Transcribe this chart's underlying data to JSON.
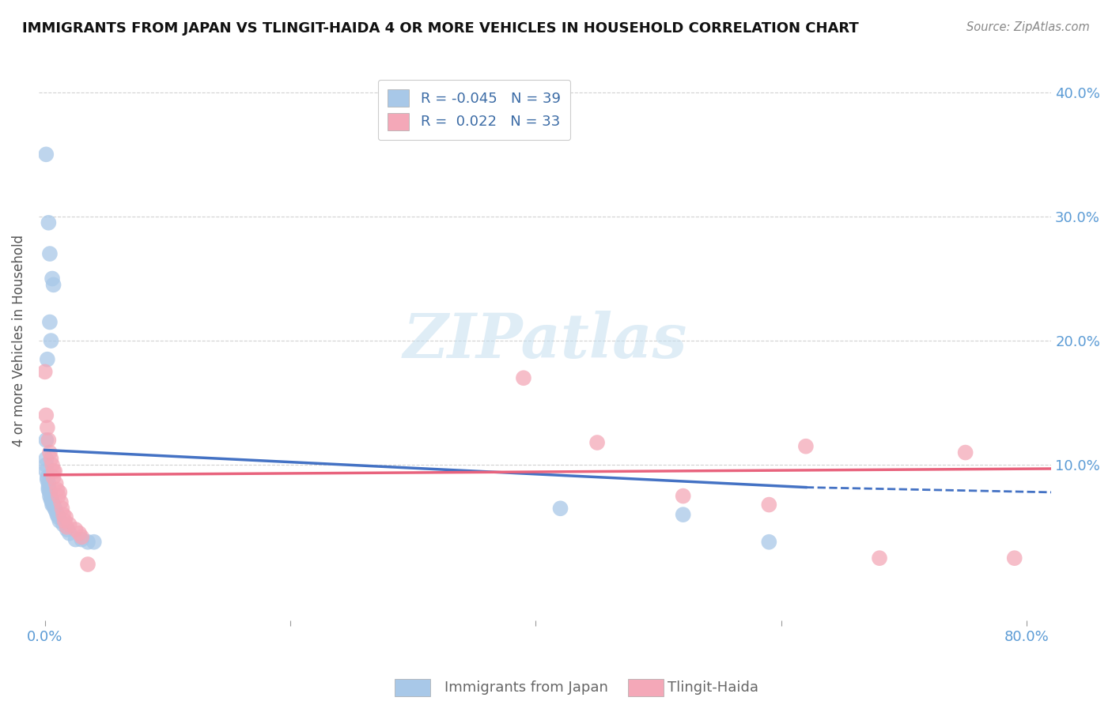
{
  "title": "IMMIGRANTS FROM JAPAN VS TLINGIT-HAIDA 4 OR MORE VEHICLES IN HOUSEHOLD CORRELATION CHART",
  "source_text": "Source: ZipAtlas.com",
  "ylabel": "4 or more Vehicles in Household",
  "xlim": [
    -0.005,
    0.82
  ],
  "ylim": [
    -0.025,
    0.425
  ],
  "yticks_right": [
    0.1,
    0.2,
    0.3,
    0.4
  ],
  "yticklabels_right": [
    "10.0%",
    "20.0%",
    "30.0%",
    "40.0%"
  ],
  "legend_label1": "Immigrants from Japan",
  "legend_label2": "Tlingit-Haida",
  "blue_color": "#A8C8E8",
  "pink_color": "#F4A8B8",
  "blue_line_color": "#4472C4",
  "pink_line_color": "#E8637D",
  "blue_scatter": [
    [
      0.001,
      0.35
    ],
    [
      0.003,
      0.295
    ],
    [
      0.004,
      0.27
    ],
    [
      0.006,
      0.25
    ],
    [
      0.007,
      0.245
    ],
    [
      0.004,
      0.215
    ],
    [
      0.005,
      0.2
    ],
    [
      0.002,
      0.185
    ],
    [
      0.001,
      0.12
    ],
    [
      0.001,
      0.105
    ],
    [
      0.001,
      0.1
    ],
    [
      0.001,
      0.095
    ],
    [
      0.002,
      0.09
    ],
    [
      0.002,
      0.088
    ],
    [
      0.003,
      0.085
    ],
    [
      0.003,
      0.082
    ],
    [
      0.003,
      0.08
    ],
    [
      0.004,
      0.078
    ],
    [
      0.004,
      0.075
    ],
    [
      0.005,
      0.073
    ],
    [
      0.005,
      0.072
    ],
    [
      0.006,
      0.07
    ],
    [
      0.006,
      0.068
    ],
    [
      0.007,
      0.068
    ],
    [
      0.008,
      0.065
    ],
    [
      0.009,
      0.063
    ],
    [
      0.01,
      0.06
    ],
    [
      0.011,
      0.058
    ],
    [
      0.012,
      0.055
    ],
    [
      0.015,
      0.052
    ],
    [
      0.018,
      0.048
    ],
    [
      0.02,
      0.045
    ],
    [
      0.025,
      0.04
    ],
    [
      0.03,
      0.04
    ],
    [
      0.035,
      0.038
    ],
    [
      0.04,
      0.038
    ],
    [
      0.42,
      0.065
    ],
    [
      0.52,
      0.06
    ],
    [
      0.59,
      0.038
    ]
  ],
  "pink_scatter": [
    [
      0.0,
      0.175
    ],
    [
      0.001,
      0.14
    ],
    [
      0.002,
      0.13
    ],
    [
      0.003,
      0.12
    ],
    [
      0.004,
      0.11
    ],
    [
      0.005,
      0.105
    ],
    [
      0.006,
      0.1
    ],
    [
      0.007,
      0.095
    ],
    [
      0.007,
      0.09
    ],
    [
      0.008,
      0.095
    ],
    [
      0.009,
      0.085
    ],
    [
      0.01,
      0.08
    ],
    [
      0.011,
      0.075
    ],
    [
      0.012,
      0.078
    ],
    [
      0.013,
      0.07
    ],
    [
      0.014,
      0.065
    ],
    [
      0.015,
      0.06
    ],
    [
      0.016,
      0.055
    ],
    [
      0.017,
      0.058
    ],
    [
      0.018,
      0.05
    ],
    [
      0.02,
      0.052
    ],
    [
      0.025,
      0.048
    ],
    [
      0.028,
      0.045
    ],
    [
      0.03,
      0.042
    ],
    [
      0.035,
      0.02
    ],
    [
      0.39,
      0.17
    ],
    [
      0.45,
      0.118
    ],
    [
      0.52,
      0.075
    ],
    [
      0.59,
      0.068
    ],
    [
      0.62,
      0.115
    ],
    [
      0.68,
      0.025
    ],
    [
      0.75,
      0.11
    ],
    [
      0.79,
      0.025
    ]
  ],
  "blue_trendline": [
    [
      0.0,
      0.112
    ],
    [
      0.62,
      0.082
    ]
  ],
  "blue_trendline_dash": [
    [
      0.62,
      0.082
    ],
    [
      0.82,
      0.078
    ]
  ],
  "pink_trendline": [
    [
      0.0,
      0.092
    ],
    [
      0.82,
      0.097
    ]
  ],
  "watermark_text": "ZIPatlas",
  "background_color": "#FFFFFF",
  "grid_color": "#CCCCCC",
  "title_fontsize": 13,
  "axis_tick_fontsize": 13,
  "ylabel_fontsize": 12
}
